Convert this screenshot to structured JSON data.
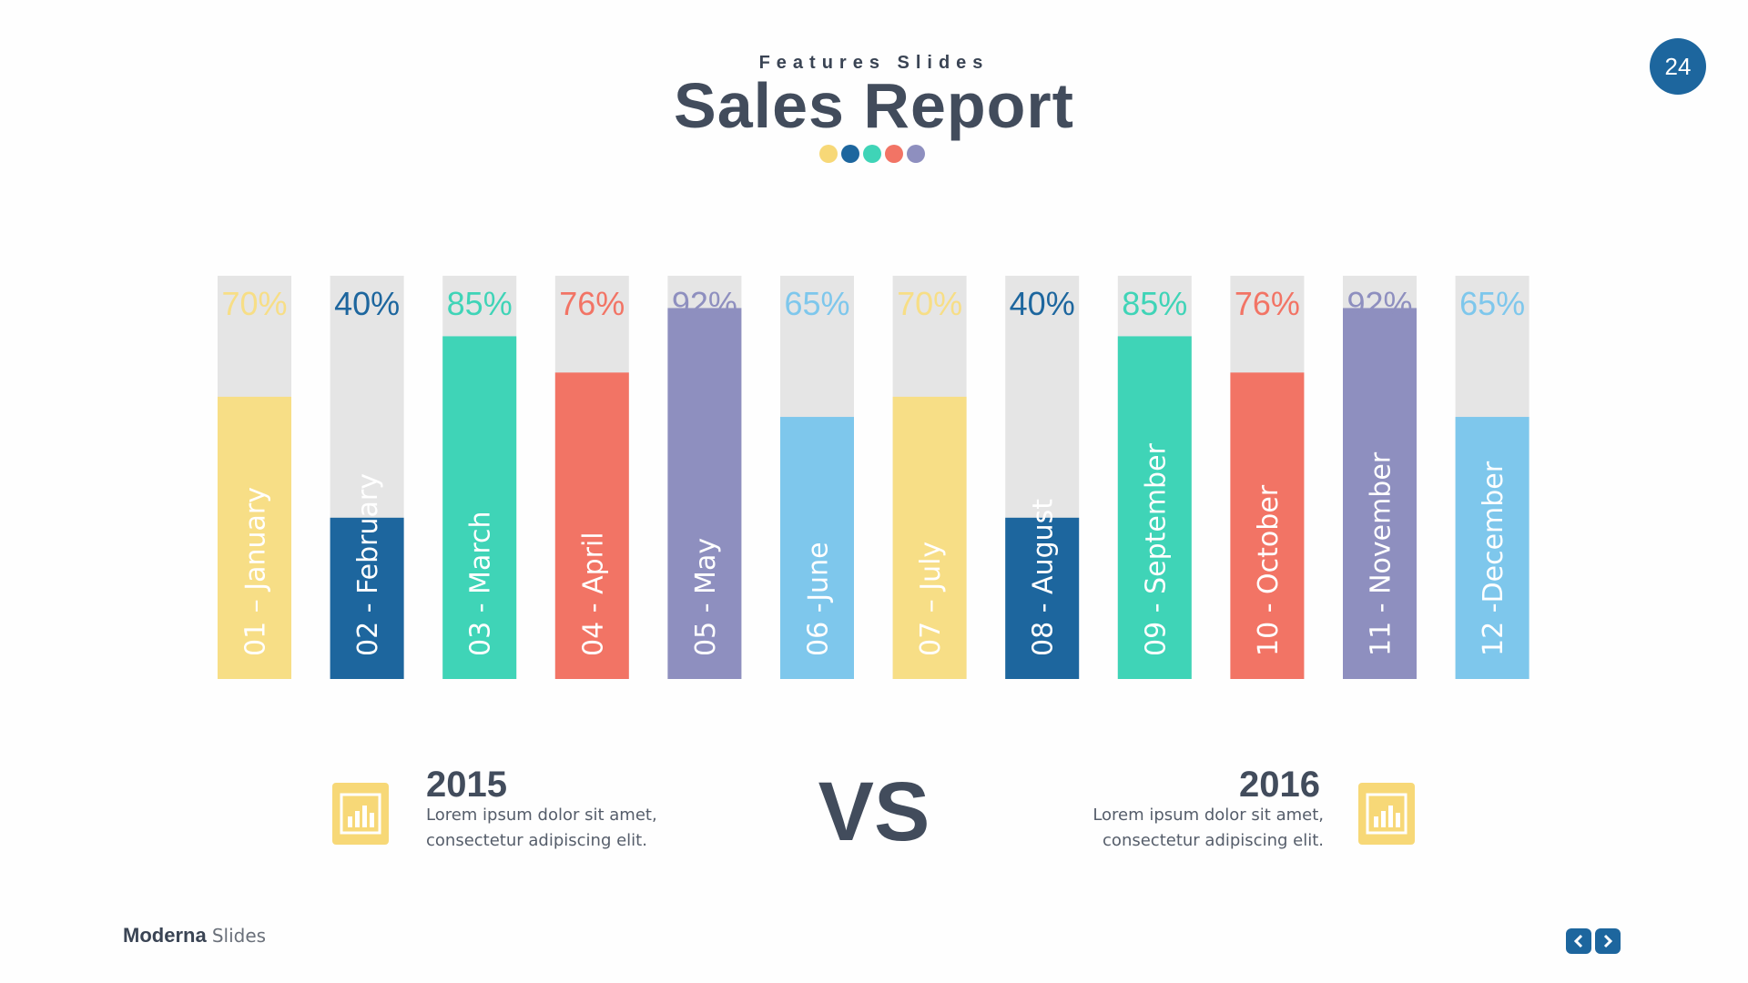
{
  "header": {
    "subtitle": "Features Slides",
    "title": "Sales Report",
    "dot_colors": [
      "#f7d877",
      "#1d669e",
      "#3fd4b7",
      "#f27465",
      "#8e8fbf"
    ]
  },
  "page_number": "24",
  "chart_data": {
    "type": "bar",
    "orientation": "vertical",
    "title": "Sales Report",
    "ylim": [
      0,
      100
    ],
    "categories": [
      "01 – January",
      "02 - February",
      "03 - March",
      "04 - April",
      "05 - May",
      "06 -June",
      "07 – July",
      "08 - August",
      "09 - September",
      "10 - October",
      "11 - November",
      "12 -December"
    ],
    "values": [
      70,
      40,
      85,
      76,
      92,
      65,
      70,
      40,
      85,
      76,
      92,
      65
    ],
    "value_labels": [
      "70%",
      "40%",
      "85%",
      "76%",
      "92%",
      "65%",
      "70%",
      "40%",
      "85%",
      "76%",
      "92%",
      "65%"
    ],
    "colors": [
      "#f7de86",
      "#1d669e",
      "#3fd4b7",
      "#f27465",
      "#8e8fbf",
      "#7ec7ec",
      "#f7de86",
      "#1d669e",
      "#3fd4b7",
      "#f27465",
      "#8e8fbf",
      "#7ec7ec"
    ],
    "track_color": "#e5e5e5"
  },
  "comparison": {
    "left": {
      "year": "2015",
      "line1": "Lorem ipsum dolor sit amet,",
      "line2": "consectetur adipiscing elit.",
      "icon": "bar-chart-icon"
    },
    "vs": "VS",
    "right": {
      "year": "2016",
      "line1": "Lorem ipsum dolor sit amet,",
      "line2": "consectetur adipiscing elit.",
      "icon": "bar-chart-icon"
    }
  },
  "footer": {
    "brand_bold": "Moderna",
    "brand_light": "Slides",
    "prev_icon": "chevron-left-icon",
    "next_icon": "chevron-right-icon"
  }
}
